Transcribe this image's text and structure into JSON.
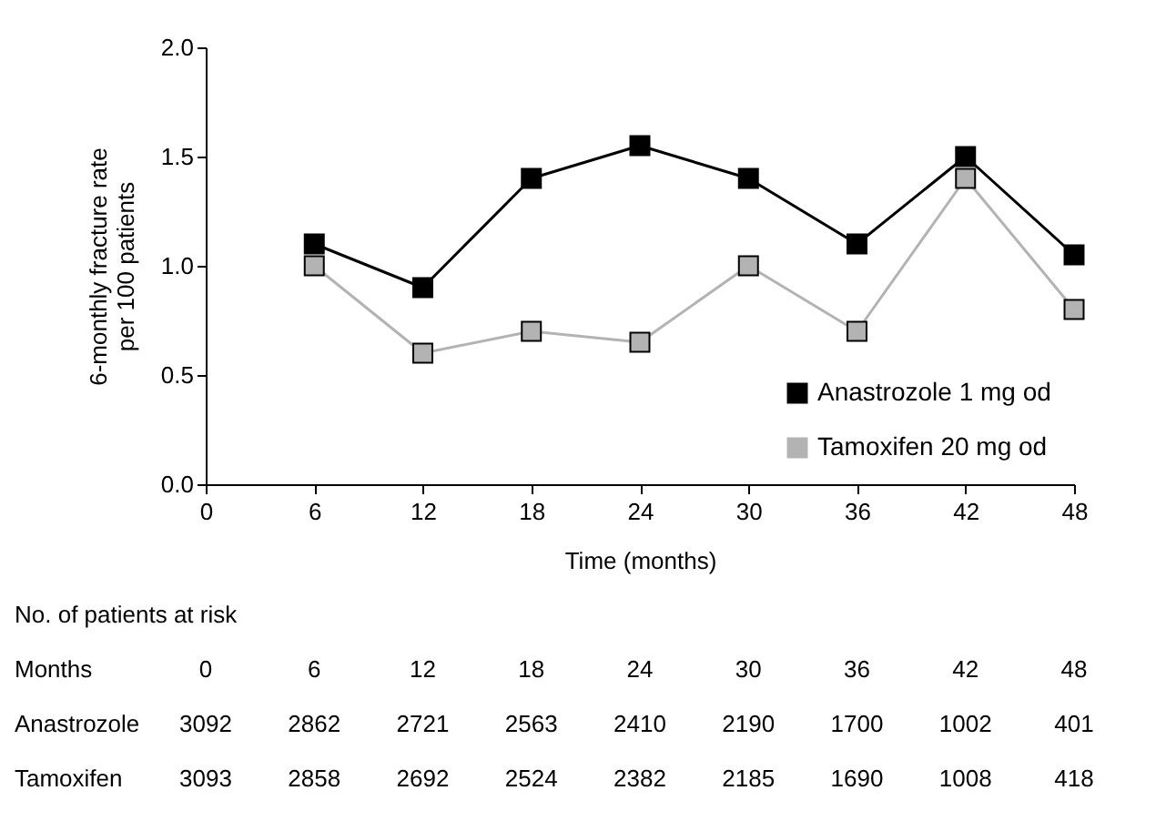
{
  "chart_data": {
    "type": "line",
    "xlabel": "Time (months)",
    "ylabel": "6-monthly fracture rate per 100 patients",
    "x": [
      6,
      12,
      18,
      24,
      30,
      36,
      42,
      48
    ],
    "series": [
      {
        "name": "Anastrozole 1 mg od",
        "color": "#000000",
        "values": [
          1.1,
          0.9,
          1.4,
          1.55,
          1.4,
          1.1,
          1.5,
          1.05
        ]
      },
      {
        "name": "Tamoxifen 20 mg od",
        "color": "#b3b3b3",
        "values": [
          1.0,
          0.6,
          0.7,
          0.65,
          1.0,
          0.7,
          1.4,
          0.8
        ]
      }
    ],
    "xlim": [
      0,
      48
    ],
    "xticks": [
      0,
      6,
      12,
      18,
      24,
      30,
      36,
      42,
      48
    ],
    "ylim": [
      0,
      2
    ],
    "yticks": [
      {
        "value": 0,
        "label": "0.0"
      },
      0.5,
      {
        "value": 1,
        "label": "1.0"
      },
      1.5,
      {
        "value": 2,
        "label": "2.0"
      }
    ],
    "grid": false,
    "legend": "bottom right",
    "marker": "square",
    "line_style": "solid",
    "annotations": [
      "No. of patients at risk",
      "Months",
      "0",
      "6",
      "12",
      "18",
      "24",
      "30",
      "36",
      "42",
      "48",
      "Anastrozole",
      "3092",
      "2862",
      "2721",
      "2563",
      "2410",
      "2190",
      "1700",
      "1002",
      "401",
      "Tamoxifen",
      "3093",
      "2858",
      "2692",
      "2524",
      "2382",
      "2185",
      "1690",
      "1008",
      "418"
    ]
  }
}
